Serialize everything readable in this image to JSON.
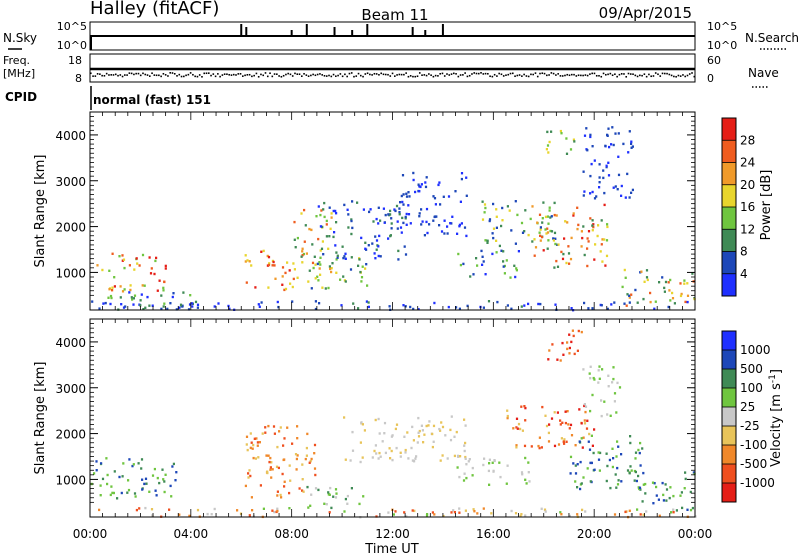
{
  "header": {
    "station": "Halley (fitACF)",
    "beam": "Beam 11",
    "date": "09/Apr/2015"
  },
  "strip_labels": {
    "nsky": "N.Sky",
    "nsky_top": "10^5",
    "nsky_bottom": "10^0",
    "nsearch": "N.Search",
    "nsearch_top": "10^5",
    "nsearch_bottom": "10^0",
    "freq_line1": "Freq.",
    "freq_line2": "[MHz]",
    "freq_top": "18",
    "freq_bottom": "8",
    "nave": "Nave",
    "nave_top": "60",
    "nave_bottom": "0",
    "cpid": "CPID",
    "cpid_value": "normal (fast) 151"
  },
  "chart_data": [
    {
      "type": "heatmap",
      "name": "power",
      "ylabel": "Slant Range [km]",
      "ylim": [
        180,
        4500
      ],
      "yticks": [
        1000,
        2000,
        3000,
        4000
      ],
      "xlim": [
        0,
        24
      ],
      "colorbar_label": "Power [dB]",
      "colorbar_ticks": [
        "4",
        "8",
        "12",
        "16",
        "20",
        "24",
        "28"
      ],
      "colors": [
        "#1f30ff",
        "#1d47b8",
        "#3f8a55",
        "#6fc53f",
        "#e8d52d",
        "#f09a2a",
        "#ef5c1f",
        "#e51e17"
      ],
      "clusters": [
        {
          "t": [
            0.2,
            3.0
          ],
          "r": [
            600,
            1450
          ],
          "c": [
            3,
            7
          ]
        },
        {
          "t": [
            0.0,
            4.0
          ],
          "r": [
            250,
            600
          ],
          "c": [
            0,
            3
          ]
        },
        {
          "t": [
            6.1,
            8.2
          ],
          "r": [
            600,
            1500
          ],
          "c": [
            4,
            7
          ]
        },
        {
          "t": [
            8.0,
            9.6
          ],
          "r": [
            1000,
            2400
          ],
          "c": [
            2,
            6
          ]
        },
        {
          "t": [
            8.5,
            11.0
          ],
          "r": [
            600,
            1400
          ],
          "c": [
            1,
            4
          ]
        },
        {
          "t": [
            9.0,
            12.5
          ],
          "r": [
            1300,
            2600
          ],
          "c": [
            0,
            2
          ]
        },
        {
          "t": [
            12.0,
            15.0
          ],
          "r": [
            1800,
            3200
          ],
          "c": [
            0,
            1
          ]
        },
        {
          "t": [
            14.5,
            17.0
          ],
          "r": [
            900,
            1500
          ],
          "c": [
            0,
            3
          ]
        },
        {
          "t": [
            15.5,
            18.5
          ],
          "r": [
            1600,
            2600
          ],
          "c": [
            1,
            4
          ]
        },
        {
          "t": [
            17.5,
            20.5
          ],
          "r": [
            1100,
            2500
          ],
          "c": [
            2,
            7
          ]
        },
        {
          "t": [
            18.0,
            19.2
          ],
          "r": [
            3600,
            4200
          ],
          "c": [
            2,
            4
          ]
        },
        {
          "t": [
            19.5,
            21.5
          ],
          "r": [
            2600,
            4200
          ],
          "c": [
            0,
            1
          ]
        },
        {
          "t": [
            21.0,
            24.0
          ],
          "r": [
            300,
            1100
          ],
          "c": [
            1,
            6
          ]
        },
        {
          "t": [
            0.0,
            24.0
          ],
          "r": [
            200,
            400
          ],
          "c": [
            0,
            2
          ]
        }
      ]
    },
    {
      "type": "heatmap",
      "name": "velocity",
      "ylabel": "Slant Range [km]",
      "xlabel": "Time UT",
      "ylim": [
        180,
        4500
      ],
      "yticks": [
        1000,
        2000,
        3000,
        4000
      ],
      "xlim": [
        0,
        24
      ],
      "xticks": [
        "00:00",
        "04:00",
        "08:00",
        "12:00",
        "16:00",
        "20:00",
        "00:00"
      ],
      "colorbar_label": "Velocity [m s^-1]",
      "colorbar_ticks": [
        "-1000",
        "-500",
        "-100",
        "-25",
        "25",
        "100",
        "500",
        "1000"
      ],
      "colors": [
        "#e51e17",
        "#ef4f1f",
        "#f0882a",
        "#e8c45a",
        "#c8c8c8",
        "#6fc53f",
        "#3f8a55",
        "#1d47b8",
        "#1f30ff"
      ],
      "clusters": [
        {
          "t": [
            0.0,
            3.5
          ],
          "r": [
            600,
            1500
          ],
          "c": [
            5,
            7
          ]
        },
        {
          "t": [
            6.1,
            9.0
          ],
          "r": [
            600,
            2200
          ],
          "c": [
            1,
            3
          ]
        },
        {
          "t": [
            8.5,
            11.0
          ],
          "r": [
            400,
            900
          ],
          "c": [
            4,
            6
          ]
        },
        {
          "t": [
            10.0,
            15.0
          ],
          "r": [
            1400,
            2400
          ],
          "c": [
            3,
            4
          ]
        },
        {
          "t": [
            14.5,
            17.5
          ],
          "r": [
            900,
            1500
          ],
          "c": [
            4,
            5
          ]
        },
        {
          "t": [
            16.5,
            20.0
          ],
          "r": [
            1700,
            2700
          ],
          "c": [
            0,
            3
          ]
        },
        {
          "t": [
            18.0,
            19.5
          ],
          "r": [
            3600,
            4300
          ],
          "c": [
            0,
            2
          ]
        },
        {
          "t": [
            19.5,
            21.0
          ],
          "r": [
            2400,
            3500
          ],
          "c": [
            4,
            5
          ]
        },
        {
          "t": [
            19.0,
            22.0
          ],
          "r": [
            800,
            2000
          ],
          "c": [
            5,
            7
          ]
        },
        {
          "t": [
            21.5,
            24.0
          ],
          "r": [
            300,
            1200
          ],
          "c": [
            5,
            7
          ]
        },
        {
          "t": [
            0.0,
            24.0
          ],
          "r": [
            200,
            400
          ],
          "c": [
            1,
            5
          ]
        }
      ]
    }
  ]
}
